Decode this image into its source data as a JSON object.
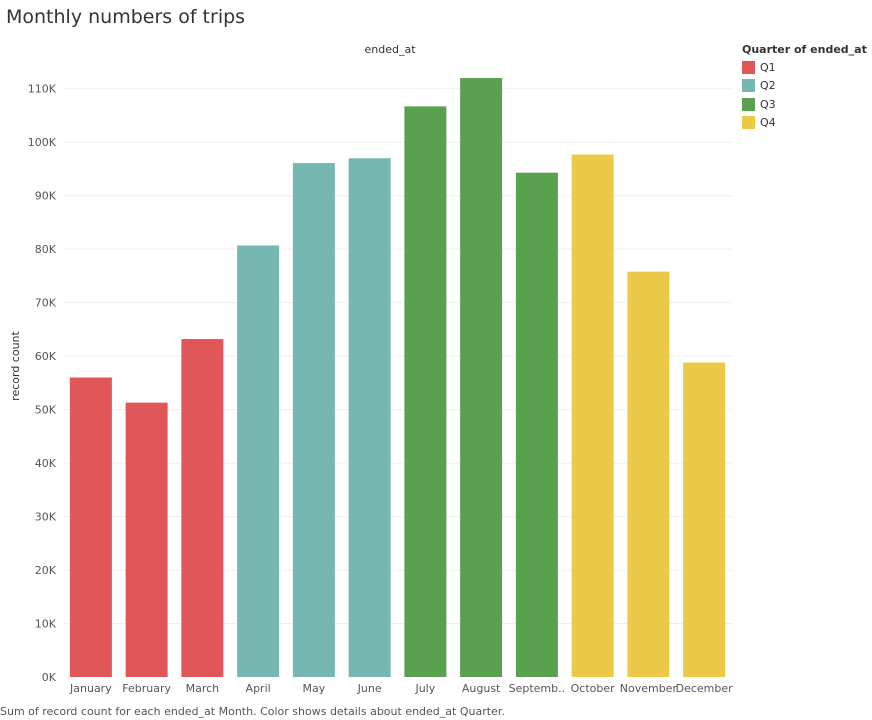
{
  "title": "Monthly numbers of trips",
  "caption": "Sum of record count for each ended_at Month.  Color shows details about ended_at Quarter.",
  "legend": {
    "title": "Quarter of ended_at",
    "items": [
      {
        "label": "Q1",
        "color": "#e15759"
      },
      {
        "label": "Q2",
        "color": "#76b7b2"
      },
      {
        "label": "Q3",
        "color": "#59a14f"
      },
      {
        "label": "Q4",
        "color": "#edc948"
      }
    ]
  },
  "chart_data": {
    "type": "bar",
    "title": "Monthly numbers of trips",
    "column_header": "ended_at",
    "xlabel": "",
    "ylabel": "record count",
    "ylim": [
      0,
      115000
    ],
    "yticks": [
      0,
      10000,
      20000,
      30000,
      40000,
      50000,
      60000,
      70000,
      80000,
      90000,
      100000,
      110000
    ],
    "ytick_labels": [
      "0K",
      "10K",
      "20K",
      "30K",
      "40K",
      "50K",
      "60K",
      "70K",
      "80K",
      "90K",
      "100K",
      "110K"
    ],
    "grid": true,
    "legend_position": "right",
    "categories": [
      "January",
      "February",
      "March",
      "April",
      "May",
      "June",
      "July",
      "August",
      "Septemb..",
      "October",
      "November",
      "December"
    ],
    "values": [
      56000,
      51300,
      63200,
      80700,
      96100,
      97000,
      106700,
      112000,
      94300,
      97700,
      75800,
      58800
    ],
    "quarters": [
      "Q1",
      "Q1",
      "Q1",
      "Q2",
      "Q2",
      "Q2",
      "Q3",
      "Q3",
      "Q3",
      "Q4",
      "Q4",
      "Q4"
    ]
  }
}
